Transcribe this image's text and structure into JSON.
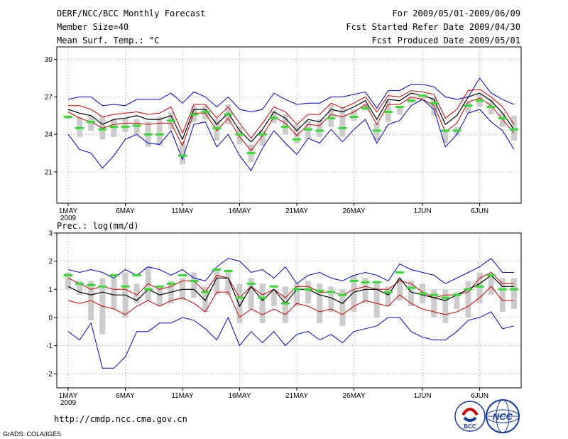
{
  "header": {
    "title": "DERF/NCC/BCC Monthly Forecast",
    "member": "Member Size=40",
    "variable": "Mean Surf. Temp.: °C",
    "period": "For 2009/05/01-2009/06/09",
    "started": "Fcst Started Refer Date 2009/04/30",
    "produced": "Fcst Produced Date 2009/05/01"
  },
  "footer": {
    "url": "http://cmdp.ncc.cma.gov.cn",
    "credit": "GrADS: COLA/IGES",
    "logo_bcc": "BCC",
    "logo_ncc": "NCC"
  },
  "colors": {
    "envelope": "#0000cc",
    "spread": "#cc0000",
    "mean": "#000000",
    "box": "#cccccc",
    "marker": "#33dd33"
  },
  "chart_data": [
    {
      "type": "line",
      "title": "Mean Surf. Temp.: °C",
      "ylim": [
        18.5,
        31
      ],
      "yticks": [
        21,
        24,
        27,
        30
      ],
      "xticks": [
        {
          "day": 1,
          "label": "1MAY",
          "sub": "2009"
        },
        {
          "day": 6,
          "label": "6MAY"
        },
        {
          "day": 11,
          "label": "11MAY"
        },
        {
          "day": 16,
          "label": "16MAY"
        },
        {
          "day": 21,
          "label": "21MAY"
        },
        {
          "day": 26,
          "label": "26MAY"
        },
        {
          "day": 32,
          "label": "1JUN"
        },
        {
          "day": 37,
          "label": "6JUN"
        }
      ],
      "days": [
        1,
        2,
        3,
        4,
        5,
        6,
        7,
        8,
        9,
        10,
        11,
        12,
        13,
        14,
        15,
        16,
        17,
        18,
        19,
        20,
        21,
        22,
        23,
        24,
        25,
        26,
        27,
        28,
        29,
        30,
        31,
        32,
        33,
        34,
        35,
        36,
        37,
        38,
        39,
        40
      ],
      "max": [
        26.8,
        27.0,
        27.0,
        26.3,
        26.4,
        26.3,
        26.8,
        26.8,
        26.8,
        27.3,
        26.5,
        27.4,
        27.0,
        26.2,
        27.0,
        26.0,
        25.8,
        26.0,
        27.3,
        26.8,
        26.4,
        26.5,
        26.5,
        27.0,
        27.0,
        27.2,
        27.4,
        26.1,
        27.5,
        27.5,
        28.0,
        28.0,
        27.8,
        27.0,
        26.8,
        27.0,
        28.5,
        27.3,
        26.8,
        26.4
      ],
      "upper": [
        26.3,
        26.3,
        26.0,
        25.4,
        25.6,
        25.7,
        25.8,
        25.6,
        25.7,
        26.2,
        24.1,
        26.4,
        26.4,
        25.3,
        26.2,
        24.9,
        23.7,
        24.9,
        26.2,
        25.8,
        24.8,
        25.6,
        25.6,
        26.5,
        26.1,
        26.5,
        27.0,
        25.8,
        27.1,
        27.0,
        27.5,
        27.4,
        27.2,
        25.3,
        26.0,
        27.5,
        27.6,
        27.0,
        26.2,
        24.8
      ],
      "mean": [
        26.0,
        25.7,
        25.5,
        24.8,
        25.2,
        25.3,
        25.5,
        25.2,
        25.2,
        25.5,
        23.6,
        26.0,
        26.0,
        24.8,
        25.7,
        24.3,
        23.4,
        24.4,
        25.8,
        25.3,
        24.3,
        25.2,
        25.0,
        26.0,
        25.8,
        26.2,
        26.7,
        25.2,
        26.8,
        26.7,
        27.3,
        27.1,
        26.8,
        24.8,
        25.5,
        27.0,
        27.3,
        26.7,
        25.7,
        24.4
      ],
      "lower": [
        25.8,
        25.3,
        25.0,
        24.5,
        24.8,
        24.9,
        24.9,
        24.8,
        24.9,
        24.9,
        23.1,
        25.7,
        25.7,
        24.3,
        25.3,
        23.8,
        22.7,
        23.9,
        25.4,
        24.9,
        23.9,
        24.8,
        24.7,
        25.6,
        25.4,
        25.8,
        26.4,
        24.8,
        26.4,
        26.4,
        27.0,
        26.8,
        26.3,
        24.2,
        24.9,
        26.6,
        26.9,
        26.3,
        25.2,
        24.1
      ],
      "min": [
        24.0,
        22.8,
        22.5,
        21.3,
        22.3,
        23.6,
        24.0,
        23.3,
        23.2,
        24.3,
        22.0,
        24.8,
        25.0,
        23.0,
        24.0,
        22.3,
        21.1,
        22.9,
        24.3,
        23.3,
        22.4,
        23.7,
        23.3,
        24.4,
        23.4,
        24.4,
        25.2,
        23.3,
        24.8,
        25.1,
        26.3,
        26.8,
        26.0,
        23.0,
        24.0,
        25.7,
        26.0,
        25.0,
        24.3,
        22.8
      ],
      "box_low": [
        25.2,
        23.8,
        24.3,
        23.6,
        23.8,
        24.2,
        24.0,
        23.0,
        23.1,
        24.4,
        21.6,
        25.0,
        25.2,
        23.5,
        24.8,
        23.2,
        21.8,
        23.1,
        24.9,
        24.0,
        23.3,
        23.7,
        23.8,
        24.6,
        23.8,
        25.1,
        25.9,
        23.5,
        25.0,
        25.6,
        26.5,
        26.7,
        25.5,
        23.3,
        23.9,
        25.7,
        26.2,
        25.6,
        24.6,
        23.5
      ],
      "box_high": [
        25.5,
        25.4,
        25.5,
        25.4,
        25.2,
        25.3,
        25.2,
        25.0,
        25.4,
        25.8,
        23.4,
        26.3,
        26.3,
        25.2,
        26.4,
        24.6,
        23.2,
        24.3,
        25.9,
        25.6,
        24.8,
        25.1,
        25.2,
        26.4,
        26.2,
        26.0,
        26.4,
        24.9,
        26.8,
        26.2,
        27.0,
        27.2,
        27.0,
        24.4,
        24.6,
        26.6,
        27.2,
        26.8,
        25.7,
        25.5
      ],
      "marker": [
        25.4,
        24.5,
        25.0,
        24.4,
        24.6,
        24.6,
        24.7,
        24.0,
        24.0,
        25.1,
        22.3,
        25.6,
        25.8,
        24.5,
        25.6,
        24.0,
        22.5,
        24.0,
        25.3,
        24.6,
        23.6,
        24.4,
        24.3,
        25.3,
        24.5,
        25.4,
        26.1,
        24.3,
        25.8,
        26.2,
        26.7,
        27.1,
        26.5,
        24.3,
        24.3,
        26.3,
        26.7,
        26.2,
        25.3,
        24.4
      ]
    },
    {
      "type": "line",
      "title": "Prec.: log(mm/d)",
      "ylim": [
        -2.5,
        3
      ],
      "yticks": [
        -2,
        -1,
        0,
        1,
        2,
        3
      ],
      "xticks": [
        {
          "day": 1,
          "label": "1MAY",
          "sub": "2009"
        },
        {
          "day": 6,
          "label": "6MAY"
        },
        {
          "day": 11,
          "label": "11MAY"
        },
        {
          "day": 16,
          "label": "16MAY"
        },
        {
          "day": 21,
          "label": "21MAY"
        },
        {
          "day": 26,
          "label": "26MAY"
        },
        {
          "day": 32,
          "label": "1JUN"
        },
        {
          "day": 37,
          "label": "6JUN"
        }
      ],
      "days": [
        1,
        2,
        3,
        4,
        5,
        6,
        7,
        8,
        9,
        10,
        11,
        12,
        13,
        14,
        15,
        16,
        17,
        18,
        19,
        20,
        21,
        22,
        23,
        24,
        25,
        26,
        27,
        28,
        29,
        30,
        31,
        32,
        33,
        34,
        35,
        36,
        37,
        38,
        39,
        40
      ],
      "max": [
        1.7,
        1.6,
        1.7,
        1.6,
        1.4,
        1.7,
        1.5,
        1.8,
        1.7,
        1.5,
        1.7,
        1.4,
        1.3,
        1.8,
        2.1,
        2.0,
        1.6,
        1.7,
        1.4,
        1.8,
        1.2,
        1.5,
        1.6,
        1.4,
        1.3,
        1.5,
        1.6,
        1.5,
        1.3,
        1.9,
        1.7,
        1.6,
        1.5,
        1.2,
        1.4,
        1.6,
        1.8,
        2.1,
        1.6,
        1.6
      ],
      "upper": [
        1.4,
        1.2,
        1.0,
        1.1,
        1.0,
        1.0,
        0.8,
        1.2,
        1.0,
        1.1,
        1.3,
        1.3,
        0.9,
        1.5,
        1.4,
        0.7,
        1.1,
        0.8,
        1.0,
        0.7,
        1.1,
        1.1,
        0.9,
        0.9,
        0.8,
        1.0,
        1.1,
        1.0,
        1.0,
        1.3,
        1.2,
        0.9,
        0.7,
        0.8,
        0.8,
        0.9,
        1.4,
        1.6,
        1.2,
        1.2
      ],
      "mean": [
        1.1,
        0.9,
        0.8,
        0.9,
        0.8,
        0.8,
        0.6,
        1.0,
        0.8,
        0.9,
        1.0,
        1.0,
        0.6,
        1.4,
        1.4,
        0.4,
        1.1,
        0.6,
        1.0,
        0.5,
        1.0,
        1.0,
        0.8,
        0.7,
        0.5,
        0.9,
        1.0,
        1.0,
        0.8,
        1.4,
        0.9,
        0.8,
        0.7,
        0.6,
        0.8,
        1.0,
        1.2,
        1.5,
        1.1,
        1.1
      ],
      "lower": [
        0.6,
        0.5,
        0.6,
        0.4,
        0.3,
        0.1,
        0.4,
        0.6,
        0.4,
        0.6,
        0.7,
        0.5,
        0.2,
        0.9,
        0.9,
        0.0,
        0.3,
        0.1,
        0.3,
        0.1,
        0.5,
        0.4,
        0.2,
        0.3,
        0.1,
        0.4,
        0.6,
        0.5,
        0.4,
        0.8,
        0.5,
        0.3,
        0.2,
        0.1,
        0.2,
        0.4,
        0.7,
        1.1,
        0.6,
        0.6
      ],
      "min": [
        -0.5,
        -0.8,
        -0.2,
        -1.8,
        -1.8,
        -1.4,
        -0.5,
        -0.5,
        -0.2,
        -0.2,
        0.0,
        -0.1,
        -0.4,
        -0.8,
        0.0,
        -1.0,
        -0.5,
        -0.9,
        -0.5,
        -1.0,
        -0.6,
        -0.5,
        -0.8,
        -0.6,
        -0.9,
        -0.5,
        -0.4,
        -0.3,
        0.0,
        0.0,
        -0.5,
        -0.7,
        -0.8,
        -0.8,
        -0.5,
        -0.1,
        0.0,
        0.2,
        -0.4,
        -0.3
      ],
      "box_low": [
        1.0,
        0.8,
        -0.1,
        -0.6,
        0.3,
        0.0,
        0.5,
        0.6,
        0.4,
        0.5,
        0.6,
        0.7,
        0.2,
        0.8,
        0.8,
        -0.2,
        0.3,
        -0.2,
        0.4,
        -0.2,
        0.4,
        0.5,
        -0.2,
        0.2,
        -0.3,
        0.2,
        0.5,
        0.0,
        0.4,
        0.6,
        0.4,
        0.5,
        0.0,
        -0.2,
        0.3,
        0.0,
        0.5,
        0.8,
        0.2,
        0.3
      ],
      "box_high": [
        1.6,
        1.3,
        1.3,
        1.4,
        1.4,
        1.6,
        1.2,
        1.8,
        1.1,
        1.3,
        1.4,
        1.6,
        1.1,
        1.7,
        1.7,
        1.2,
        1.4,
        1.2,
        1.0,
        1.1,
        1.2,
        1.3,
        1.2,
        1.1,
        1.0,
        1.5,
        1.4,
        1.3,
        1.1,
        1.4,
        1.3,
        1.2,
        1.0,
        1.0,
        0.9,
        1.3,
        1.6,
        1.5,
        1.4,
        1.4
      ],
      "marker": [
        1.5,
        1.2,
        1.15,
        1.1,
        1.5,
        1.1,
        1.5,
        1.0,
        1.1,
        1.2,
        1.5,
        1.3,
        0.9,
        1.7,
        1.65,
        0.7,
        1.2,
        0.7,
        1.1,
        0.5,
        1.0,
        1.0,
        0.95,
        0.9,
        0.8,
        1.3,
        1.25,
        1.25,
        0.9,
        1.6,
        1.05,
        0.85,
        0.8,
        0.7,
        0.8,
        1.0,
        1.1,
        1.5,
        1.0,
        1.0
      ]
    }
  ]
}
